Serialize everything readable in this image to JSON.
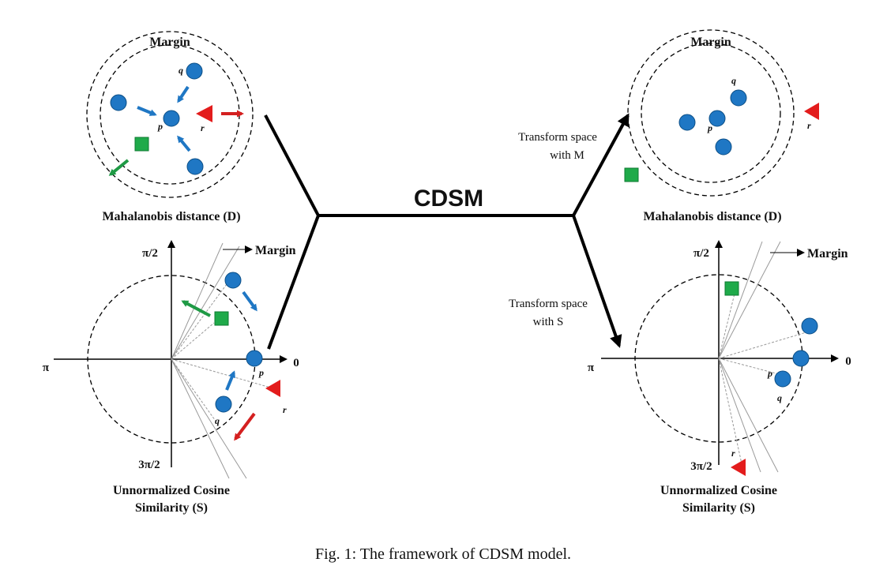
{
  "center_label": "CDSM",
  "caption": "Fig. 1: The framework of CDSM model.",
  "colors": {
    "point": "#1f77c4",
    "point_stroke": "#0d4f86",
    "triangle": "#e31c1c",
    "square": "#1faa4a",
    "square_stroke": "#0e7a30",
    "arrow_blue": "#1f77c4",
    "arrow_red": "#d42020",
    "arrow_green": "#1f9a45",
    "line": "#000000"
  },
  "top_left": {
    "margin_label": "Margin",
    "title": "Mahalanobis distance (D)",
    "p": "p",
    "q": "q",
    "r": "r"
  },
  "top_right": {
    "margin_label": "Margin",
    "title": "Mahalanobis distance (D)",
    "p": "p",
    "q": "q",
    "r": "r"
  },
  "bottom_left": {
    "angle_top": "π/2",
    "angle_right": "0",
    "angle_left": "π",
    "angle_bottom": "3π/2",
    "margin_label": "Margin",
    "title_line1": "Unnormalized Cosine",
    "title_line2": "Similarity (S)",
    "p": "p",
    "q": "q",
    "r": "r"
  },
  "bottom_right": {
    "angle_top": "π/2",
    "angle_right": "0",
    "angle_left": "π",
    "angle_bottom": "3π/2",
    "margin_label": "Margin",
    "title_line1": "Unnormalized Cosine",
    "title_line2": "Similarity (S)",
    "p": "p",
    "q": "q",
    "r": "r"
  },
  "transform_m": {
    "line1": "Transform space",
    "line2": "with M"
  },
  "transform_s": {
    "line1": "Transform space",
    "line2": "with S"
  }
}
